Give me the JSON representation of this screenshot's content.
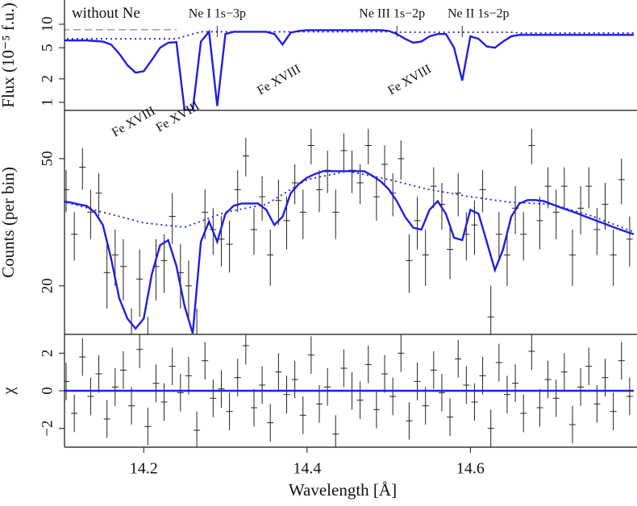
{
  "chart_data": [
    {
      "type": "line",
      "ylabel": "Flux (10⁻⁵ f.u.)",
      "log_y": true,
      "xlim": [
        14.103,
        14.804
      ],
      "ylim": [
        0.79,
        20.4
      ],
      "yticks": [
        1,
        2,
        5,
        10
      ],
      "x": [
        14.1,
        14.11,
        14.12,
        14.13,
        14.14,
        14.15,
        14.16,
        14.17,
        14.18,
        14.19,
        14.2,
        14.21,
        14.22,
        14.23,
        14.24,
        14.25,
        14.26,
        14.27,
        14.28,
        14.29,
        14.3,
        14.31,
        14.32,
        14.33,
        14.34,
        14.35,
        14.36,
        14.37,
        14.38,
        14.39,
        14.4,
        14.41,
        14.42,
        14.43,
        14.44,
        14.45,
        14.46,
        14.47,
        14.48,
        14.49,
        14.5,
        14.51,
        14.52,
        14.53,
        14.54,
        14.55,
        14.56,
        14.57,
        14.58,
        14.59,
        14.6,
        14.61,
        14.62,
        14.63,
        14.64,
        14.65,
        14.66,
        14.67,
        14.68,
        14.69,
        14.7,
        14.71,
        14.72,
        14.73,
        14.74,
        14.75,
        14.76,
        14.77,
        14.78,
        14.79,
        14.8
      ],
      "series": [
        {
          "color": "#1f1fe0",
          "line_style": "solid",
          "values": [
            6.2,
            6.2,
            6.2,
            6.2,
            6.1,
            6.0,
            5.5,
            4.2,
            3.0,
            2.4,
            2.5,
            3.5,
            5.0,
            5.8,
            5.9,
            0.8,
            0.8,
            6.0,
            8.0,
            0.9,
            7.5,
            8.0,
            8.0,
            8.0,
            8.0,
            8.0,
            7.5,
            5.5,
            7.8,
            8.2,
            8.4,
            8.4,
            8.4,
            8.4,
            8.4,
            8.4,
            8.4,
            8.4,
            8.4,
            8.4,
            8.2,
            7.5,
            6.5,
            5.8,
            6.0,
            7.0,
            7.5,
            7.5,
            5.0,
            1.9,
            7.0,
            6.5,
            5.2,
            5.0,
            6.0,
            7.0,
            7.3,
            7.3,
            7.3,
            7.3,
            7.3,
            7.3,
            7.3,
            7.3,
            7.3,
            7.3,
            7.3,
            7.3,
            7.3,
            7.3,
            7.3
          ]
        },
        {
          "color": "#1f1fe0",
          "line_style": "dotted",
          "values": [
            6.5,
            6.5,
            6.5,
            6.5,
            6.5,
            6.5,
            6.5,
            6.5,
            6.5,
            6.5,
            6.5,
            6.5,
            6.5,
            6.5,
            6.5,
            7.0,
            7.5,
            8.0,
            8.0,
            8.0,
            8.0,
            8.0,
            8.0,
            8.0,
            8.0,
            8.0,
            8.0,
            8.0,
            8.0,
            8.0,
            8.0,
            8.0,
            8.0,
            8.0,
            8.0,
            8.0,
            8.0,
            8.0,
            8.0,
            8.0,
            8.0,
            7.9,
            7.9,
            7.9,
            7.9,
            7.9,
            7.9,
            7.9,
            7.9,
            7.9,
            7.9,
            7.9,
            7.9,
            7.9,
            7.9,
            7.9,
            7.7,
            7.7,
            7.7,
            7.7,
            7.7,
            7.7,
            7.7,
            7.7,
            7.7,
            7.7,
            7.7,
            7.7,
            7.7,
            7.7,
            7.7
          ]
        },
        {
          "name": "without Ne",
          "color": "#aaaaaa",
          "line_style": "dashed",
          "x": [
            14.1,
            14.24
          ],
          "values": [
            8.5,
            8.5
          ]
        }
      ],
      "annotations": [
        {
          "text": "Ne I 1s−3p",
          "x": 14.29
        },
        {
          "text": "Ne III 1s−2p",
          "x": 14.51
        },
        {
          "text": "Ne II 1s−2p",
          "x": 14.59
        },
        {
          "text": "Fe XVIII",
          "x": 14.19
        },
        {
          "text": "Fe XVIII",
          "x": 14.25
        },
        {
          "text": "Fe XVIII",
          "x": 14.37
        },
        {
          "text": "Fe XVIII",
          "x": 14.53
        }
      ]
    },
    {
      "type": "line",
      "ylabel": "Counts (per bin)",
      "log_y": true,
      "xlim": [
        14.103,
        14.804
      ],
      "ylim": [
        14.1,
        70.8
      ],
      "yticks": [
        20,
        50
      ],
      "x": [
        14.1,
        14.11,
        14.12,
        14.13,
        14.14,
        14.15,
        14.16,
        14.17,
        14.18,
        14.19,
        14.2,
        14.21,
        14.22,
        14.23,
        14.24,
        14.25,
        14.26,
        14.27,
        14.28,
        14.29,
        14.3,
        14.31,
        14.32,
        14.33,
        14.34,
        14.35,
        14.36,
        14.37,
        14.38,
        14.39,
        14.4,
        14.41,
        14.42,
        14.43,
        14.44,
        14.45,
        14.46,
        14.47,
        14.48,
        14.49,
        14.5,
        14.51,
        14.52,
        14.53,
        14.54,
        14.55,
        14.56,
        14.57,
        14.58,
        14.59,
        14.6,
        14.61,
        14.62,
        14.63,
        14.64,
        14.65,
        14.66,
        14.67,
        14.68,
        14.69,
        14.7,
        14.71,
        14.72,
        14.73,
        14.74,
        14.75,
        14.76,
        14.77,
        14.78,
        14.79,
        14.8
      ],
      "series": [
        {
          "color": "#1f1fe0",
          "line_style": "solid",
          "values": [
            36.8,
            36.5,
            36.0,
            35.6,
            34.0,
            31.0,
            24.4,
            18.3,
            15.8,
            14.7,
            15.8,
            21.8,
            26.8,
            27.8,
            23.1,
            17.3,
            14.2,
            27.5,
            31.8,
            27.5,
            33.6,
            35.6,
            36.2,
            36.2,
            36.2,
            34.6,
            31.0,
            32.9,
            39.0,
            41.7,
            43.6,
            44.8,
            45.7,
            45.7,
            45.7,
            45.7,
            45.7,
            45.7,
            44.2,
            42.5,
            40.1,
            36.8,
            32.9,
            30.4,
            30.0,
            34.6,
            36.8,
            33.6,
            28.3,
            27.8,
            34.6,
            33.6,
            27.5,
            22.4,
            26.0,
            32.9,
            36.2,
            37.1,
            37.1,
            36.8,
            36.0,
            35.2,
            34.5,
            33.8,
            33.0,
            32.3,
            31.6,
            30.9,
            30.2,
            29.6,
            29.0
          ]
        },
        {
          "color": "#1f1fe0",
          "line_style": "dotted",
          "x": [
            14.1,
            14.15,
            14.2,
            14.25,
            14.3,
            14.35,
            14.4,
            14.45,
            14.5,
            14.55,
            14.6,
            14.65,
            14.7,
            14.75,
            14.8
          ],
          "values": [
            36.8,
            34,
            31.5,
            30.5,
            34,
            36,
            43,
            45.7,
            43,
            40,
            38,
            36.5,
            36,
            33,
            29.5
          ]
        }
      ],
      "points": {
        "color": "#222222",
        "x": [
          14.105,
          14.115,
          14.125,
          14.135,
          14.145,
          14.155,
          14.165,
          14.175,
          14.185,
          14.195,
          14.205,
          14.215,
          14.225,
          14.235,
          14.245,
          14.255,
          14.265,
          14.275,
          14.285,
          14.295,
          14.305,
          14.315,
          14.325,
          14.335,
          14.345,
          14.355,
          14.365,
          14.375,
          14.385,
          14.395,
          14.405,
          14.415,
          14.425,
          14.435,
          14.445,
          14.455,
          14.465,
          14.475,
          14.485,
          14.495,
          14.505,
          14.515,
          14.525,
          14.535,
          14.545,
          14.555,
          14.565,
          14.575,
          14.585,
          14.595,
          14.605,
          14.615,
          14.625,
          14.635,
          14.645,
          14.655,
          14.665,
          14.675,
          14.685,
          14.695,
          14.705,
          14.715,
          14.725,
          14.735,
          14.745,
          14.755,
          14.765,
          14.775,
          14.785,
          14.795
        ],
        "values": [
          40,
          29,
          47,
          34,
          39,
          22,
          25,
          23,
          13,
          21,
          12,
          23,
          24,
          33,
          22,
          20,
          13,
          34,
          30,
          28,
          27,
          40,
          51,
          30,
          38,
          25,
          37,
          32,
          42,
          34,
          55,
          40,
          46,
          34,
          53,
          46,
          42,
          55,
          38,
          48,
          39,
          50,
          24,
          32,
          25,
          41,
          36,
          26,
          39,
          29,
          31,
          40,
          16,
          29,
          25,
          35,
          29,
          55,
          32,
          41,
          34,
          41,
          25,
          35,
          41,
          30,
          36,
          25,
          43,
          28
        ],
        "errors": [
          6,
          5,
          7,
          6,
          6,
          5,
          5,
          5,
          4,
          5,
          4,
          5,
          5,
          6,
          5,
          4,
          4,
          6,
          5,
          5,
          5,
          6,
          7,
          5,
          6,
          5,
          6,
          6,
          6,
          6,
          7,
          6,
          7,
          6,
          7,
          7,
          6,
          7,
          6,
          7,
          6,
          7,
          5,
          6,
          5,
          6,
          6,
          5,
          6,
          5,
          6,
          6,
          4,
          5,
          5,
          6,
          5,
          7,
          6,
          6,
          6,
          6,
          5,
          6,
          6,
          5,
          6,
          5,
          7,
          5
        ]
      }
    },
    {
      "type": "line",
      "ylabel": "χ",
      "xlabel": "Wavelength [Å]",
      "xlim": [
        14.103,
        14.804
      ],
      "ylim": [
        -3,
        3
      ],
      "yticks": [
        {
          "value": -2,
          "label": "−2"
        },
        0,
        2
      ],
      "xticks": [
        14.2,
        14.4,
        14.6
      ],
      "x": [
        14.1,
        14.8
      ],
      "series": [
        {
          "color": "#1f1fe0",
          "line_style": "solid",
          "values": [
            0,
            0
          ]
        }
      ],
      "points": {
        "color": "#222222",
        "x": [
          14.105,
          14.115,
          14.125,
          14.135,
          14.145,
          14.155,
          14.165,
          14.175,
          14.185,
          14.195,
          14.205,
          14.215,
          14.225,
          14.235,
          14.245,
          14.255,
          14.265,
          14.275,
          14.285,
          14.295,
          14.305,
          14.315,
          14.325,
          14.335,
          14.345,
          14.355,
          14.365,
          14.375,
          14.385,
          14.395,
          14.405,
          14.415,
          14.425,
          14.435,
          14.445,
          14.455,
          14.465,
          14.475,
          14.485,
          14.495,
          14.505,
          14.515,
          14.525,
          14.535,
          14.545,
          14.555,
          14.565,
          14.575,
          14.585,
          14.595,
          14.605,
          14.615,
          14.625,
          14.635,
          14.645,
          14.655,
          14.665,
          14.675,
          14.685,
          14.695,
          14.705,
          14.715,
          14.725,
          14.735,
          14.745,
          14.755,
          14.765,
          14.775,
          14.785,
          14.795
        ],
        "values": [
          0.5,
          -1.2,
          1.8,
          -0.3,
          0.9,
          -1.5,
          0.2,
          1.1,
          -0.8,
          2.2,
          -1.9,
          0.4,
          -0.6,
          1.3,
          -0.1,
          0.8,
          -2.1,
          1.6,
          -0.4,
          0.1,
          -1.1,
          0.7,
          2.4,
          -0.9,
          0.3,
          -1.7,
          1.0,
          -0.2,
          0.6,
          -1.3,
          1.9,
          -0.7,
          0.2,
          -2.3,
          1.2,
          0.0,
          -0.5,
          1.4,
          -1.0,
          0.9,
          -0.3,
          2.0,
          -1.6,
          0.5,
          -0.8,
          1.1,
          -0.1,
          -1.4,
          1.7,
          0.3,
          -0.6,
          0.8,
          -2.0,
          1.5,
          -0.2,
          0.4,
          -1.2,
          2.1,
          -0.9,
          0.6,
          -0.4,
          1.0,
          -1.8,
          0.2,
          1.3,
          -0.7,
          0.7,
          -1.1,
          1.6,
          -0.3
        ],
        "errors": [
          1,
          1,
          1,
          1,
          1,
          1,
          1,
          1,
          1,
          1,
          1,
          1,
          1,
          1,
          1,
          1,
          1,
          1,
          1,
          1,
          1,
          1,
          1,
          1,
          1,
          1,
          1,
          1,
          1,
          1,
          1,
          1,
          1,
          1,
          1,
          1,
          1,
          1,
          1,
          1,
          1,
          1,
          1,
          1,
          1,
          1,
          1,
          1,
          1,
          1,
          1,
          1,
          1,
          1,
          1,
          1,
          1,
          1,
          1,
          1,
          1,
          1,
          1,
          1,
          1,
          1,
          1,
          1,
          1,
          1
        ]
      }
    }
  ]
}
